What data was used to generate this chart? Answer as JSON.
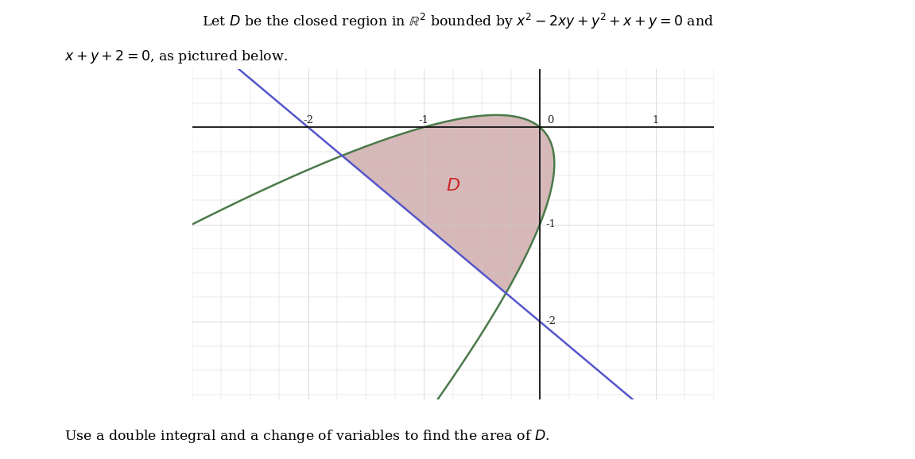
{
  "title_line1": "Let $D$ be the closed region in $\\mathbb{R}^2$ bounded by $x^2 - 2xy + y^2 + x + y = 0$ and",
  "title_line2": "$x + y + 2 = 0$, as pictured below.",
  "bottom_text": "Use a double integral and a change of variables to find the area of $D$.",
  "label_D": "$D$",
  "xlim": [
    -3.0,
    1.5
  ],
  "ylim": [
    -2.8,
    0.6
  ],
  "xtick_vals": [
    -2,
    -1,
    0,
    1
  ],
  "ytick_vals": [
    -2,
    -1
  ],
  "grid_color": "#cccccc",
  "grid_linewidth": 0.5,
  "axis_color": "#111111",
  "fill_color": "#c9a0a0",
  "fill_alpha": 0.75,
  "parabola_color": "#4a7a4a",
  "parabola_lw": 1.8,
  "line_color": "#5555cc",
  "line_lw": 1.8,
  "bg_color": "#ffffff",
  "fig_width": 11.51,
  "fig_height": 5.78
}
